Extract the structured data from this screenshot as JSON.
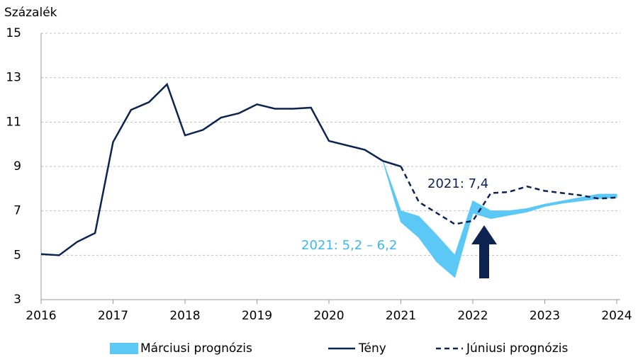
{
  "chart_data": {
    "type": "line",
    "y_label": "Százalék",
    "x": [
      2016,
      2016.25,
      2016.5,
      2016.75,
      2017,
      2017.25,
      2017.5,
      2017.75,
      2018,
      2018.25,
      2018.5,
      2018.75,
      2019,
      2019.25,
      2019.5,
      2019.75,
      2020,
      2020.25,
      2020.5,
      2020.75,
      2021,
      2021.25,
      2021.5,
      2021.75,
      2022,
      2022.25,
      2022.5,
      2022.75,
      2023,
      2023.25,
      2023.5,
      2023.75,
      2024
    ],
    "series": [
      {
        "name": "Márciusi prognózis",
        "color": "#5bc8f5",
        "values": [
          null,
          null,
          null,
          null,
          null,
          null,
          null,
          null,
          null,
          null,
          null,
          null,
          null,
          null,
          null,
          null,
          null,
          null,
          null,
          9.25,
          7.0,
          6.75,
          5.9,
          5.0,
          7.45,
          7.0,
          7.0,
          7.1,
          7.3,
          7.45,
          7.6,
          7.75,
          7.75
        ],
        "lower": [
          null,
          null,
          null,
          null,
          null,
          null,
          null,
          null,
          null,
          null,
          null,
          null,
          null,
          null,
          null,
          null,
          null,
          null,
          null,
          9.25,
          6.5,
          5.8,
          4.7,
          4.0,
          6.9,
          6.65,
          6.8,
          6.95,
          7.2,
          7.35,
          7.45,
          7.55,
          7.6
        ]
      },
      {
        "name": "Tény",
        "color": "#0d2350",
        "values": [
          5.05,
          5.0,
          5.6,
          6.0,
          10.1,
          11.55,
          11.9,
          12.7,
          10.4,
          10.65,
          11.2,
          11.4,
          11.8,
          11.6,
          11.6,
          11.65,
          10.15,
          9.95,
          9.75,
          9.25,
          9.0,
          null,
          null,
          null,
          null,
          null,
          null,
          null,
          null,
          null,
          null,
          null,
          null
        ]
      },
      {
        "name": "Júniusi prognózis",
        "color": "#0d2350",
        "dashed": true,
        "values": [
          null,
          null,
          null,
          null,
          null,
          null,
          null,
          null,
          null,
          null,
          null,
          null,
          null,
          null,
          null,
          null,
          null,
          null,
          null,
          null,
          9.0,
          7.4,
          6.9,
          6.4,
          6.55,
          7.8,
          7.85,
          8.1,
          7.9,
          7.8,
          7.7,
          7.55,
          7.6
        ]
      }
    ],
    "annotations": [
      "2021: 7,4",
      "2021: 5,2 – 6,2"
    ],
    "xlim": [
      2016,
      2024
    ],
    "xticks": [
      2016,
      2017,
      2018,
      2019,
      2020,
      2021,
      2022,
      2023,
      2024
    ],
    "ylim": [
      3,
      15
    ],
    "yticks": [
      3,
      5,
      7,
      9,
      11,
      13,
      15
    ],
    "grid": true,
    "legend": "bottom"
  }
}
